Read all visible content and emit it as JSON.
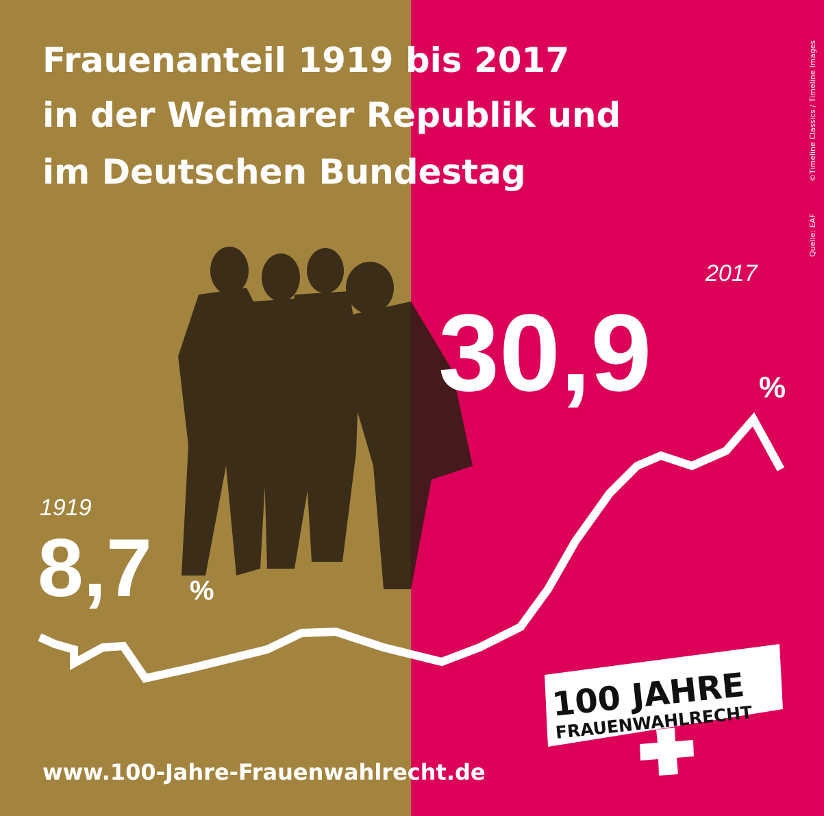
{
  "header": {
    "title_lines": [
      "Frauenanteil 1919 bis 2017",
      "in der Weimarer Republik und",
      "im Deutschen Bundestag"
    ]
  },
  "credits": {
    "photo": "©Timeline Classics / Timeline Images",
    "source": "Quelle: EAF"
  },
  "start": {
    "year": "1919",
    "value": "8,7",
    "unit": "%"
  },
  "end": {
    "year": "2017",
    "value": "30,9",
    "unit": "%"
  },
  "logo": {
    "line1": "100 JAHRE",
    "line2": "FRAUENWAHLRECHT"
  },
  "footer": {
    "url": "www.100-Jahre-Frauenwahlrecht.de"
  }
}
